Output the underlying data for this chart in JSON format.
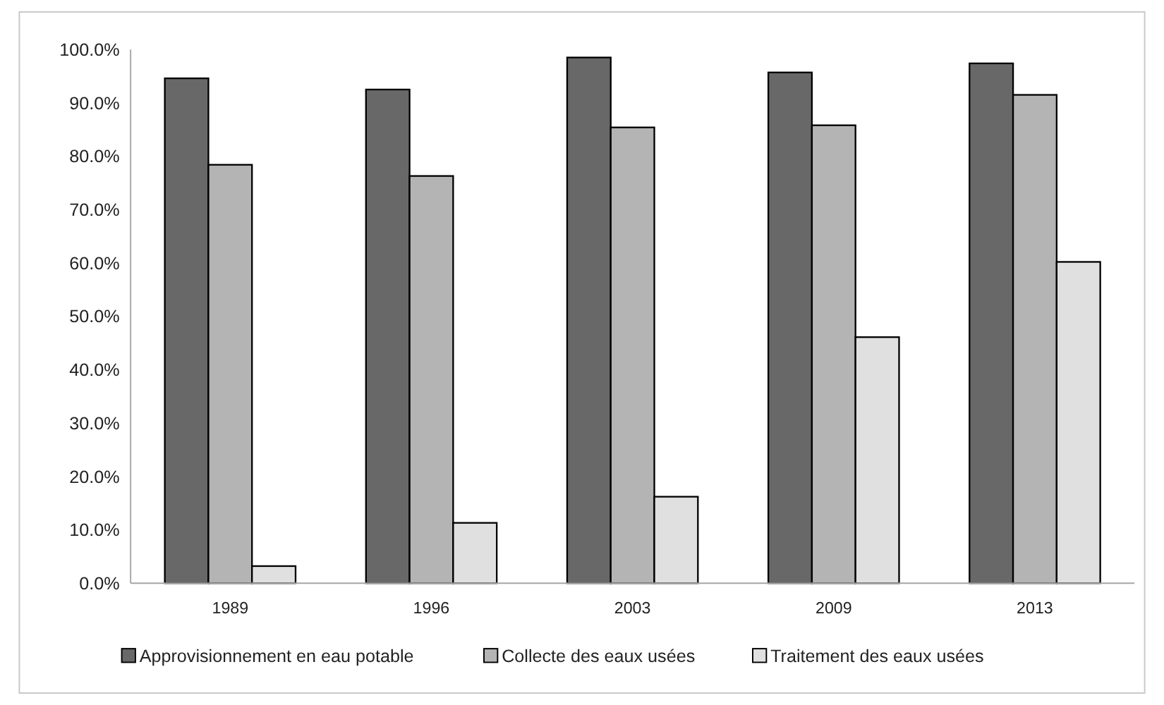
{
  "chart_data": {
    "type": "bar",
    "categories": [
      "1989",
      "1996",
      "2003",
      "2009",
      "2013"
    ],
    "series": [
      {
        "name": "Approvisionnement en eau potable",
        "color": "#686868",
        "values": [
          94.6,
          92.5,
          98.5,
          95.7,
          97.4
        ]
      },
      {
        "name": "Collecte des eaux usées",
        "color": "#b4b4b4",
        "values": [
          78.4,
          76.3,
          85.4,
          85.8,
          91.5
        ]
      },
      {
        "name": "Traitement des eaux usées",
        "color": "#e0e0e0",
        "values": [
          3.2,
          11.3,
          16.2,
          46.1,
          60.2
        ]
      }
    ],
    "ylim": [
      0,
      100
    ],
    "yticks": [
      {
        "value": 0,
        "label": "0.0%"
      },
      {
        "value": 10,
        "label": "10.0%"
      },
      {
        "value": 20,
        "label": "20.0%"
      },
      {
        "value": 30,
        "label": "30.0%"
      },
      {
        "value": 40,
        "label": "40.0%"
      },
      {
        "value": 50,
        "label": "50.0%"
      },
      {
        "value": 60,
        "label": "60.0%"
      },
      {
        "value": 70,
        "label": "70.0%"
      },
      {
        "value": 80,
        "label": "80.0%"
      },
      {
        "value": 90,
        "label": "90.0%"
      },
      {
        "value": 100,
        "label": "100.0%"
      }
    ],
    "grid": false,
    "legend": "bottom"
  }
}
